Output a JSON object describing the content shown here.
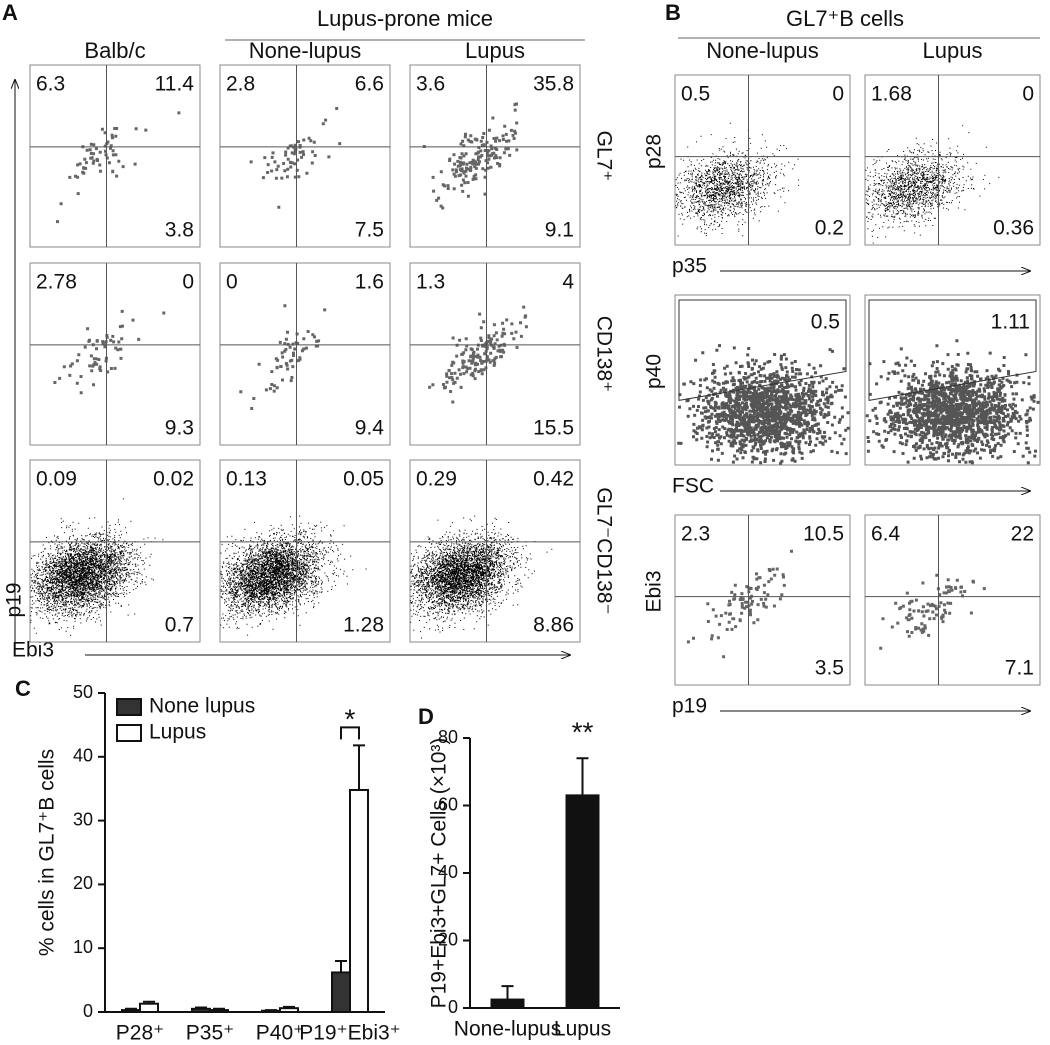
{
  "panel_a": {
    "label": "A",
    "group_title": "Lupus-prone mice",
    "columns": [
      "Balb/c",
      "None-lupus",
      "Lupus"
    ],
    "y_label": "p19",
    "x_label": "Ebi3",
    "rows": [
      {
        "label": "GL7⁺",
        "plots": [
          [
            6.3,
            11.4,
            3.8
          ],
          [
            2.8,
            6.6,
            7.5
          ],
          [
            3.6,
            35.8,
            9.1
          ]
        ]
      },
      {
        "label": "CD138⁺",
        "plots": [
          [
            2.78,
            0,
            9.3
          ],
          [
            0,
            1.6,
            9.4
          ],
          [
            1.3,
            4,
            15.5
          ]
        ]
      },
      {
        "label": "GL7⁻CD138⁻",
        "plots": [
          [
            0.09,
            0.02,
            0.7
          ],
          [
            0.13,
            0.05,
            1.28
          ],
          [
            0.29,
            0.42,
            8.86
          ]
        ]
      }
    ]
  },
  "panel_b": {
    "label": "B",
    "title": "GL7⁺B cells",
    "columns": [
      "None-lupus",
      "Lupus"
    ],
    "rows": [
      {
        "y_label": "p28",
        "x_label": "p35",
        "plots": [
          [
            0.5,
            0,
            0.2
          ],
          [
            1.68,
            0,
            0.36
          ]
        ]
      },
      {
        "y_label": "p40",
        "x_label": "FSC",
        "plots": [
          [
            0.5
          ],
          [
            1.11
          ]
        ]
      },
      {
        "y_label": "Ebi3",
        "x_label": "p19",
        "plots": [
          [
            2.3,
            10.5,
            3.5
          ],
          [
            6.4,
            22,
            7.1
          ]
        ]
      }
    ]
  },
  "chart_data": [
    {
      "type": "bar",
      "label": "C",
      "y_label": "% cells in GL7⁺B cells",
      "categories": [
        "P28⁺",
        "P35⁺",
        "P40⁺",
        "P19⁺Ebi3⁺"
      ],
      "series": [
        {
          "name": "None lupus",
          "color": "#333333",
          "values": [
            0.3,
            0.5,
            0.2,
            6.2
          ],
          "errors": [
            0.2,
            0.2,
            0.1,
            1.8
          ]
        },
        {
          "name": "Lupus",
          "color": "#ffffff",
          "values": [
            1.3,
            0.3,
            0.6,
            34.8
          ],
          "errors": [
            0.3,
            0.2,
            0.2,
            7
          ]
        }
      ],
      "ylim": [
        0,
        50
      ],
      "yticks": [
        0,
        10,
        20,
        30,
        40,
        50
      ],
      "legend": "upper-left",
      "annotations": [
        {
          "text": "*",
          "category": "P19⁺Ebi3⁺"
        }
      ]
    },
    {
      "type": "bar",
      "label": "D",
      "y_label": "P19+Ebi3+GL7+ Cells (×10³)",
      "categories": [
        "None-lupus",
        "Lupus"
      ],
      "series": [
        {
          "color": "#111111",
          "values": [
            2.5,
            63
          ],
          "errors": [
            4,
            11
          ]
        }
      ],
      "ylim": [
        0,
        80
      ],
      "yticks": [
        0,
        20,
        40,
        60,
        80
      ],
      "annotations": [
        {
          "text": "**",
          "category": "Lupus"
        }
      ]
    }
  ]
}
